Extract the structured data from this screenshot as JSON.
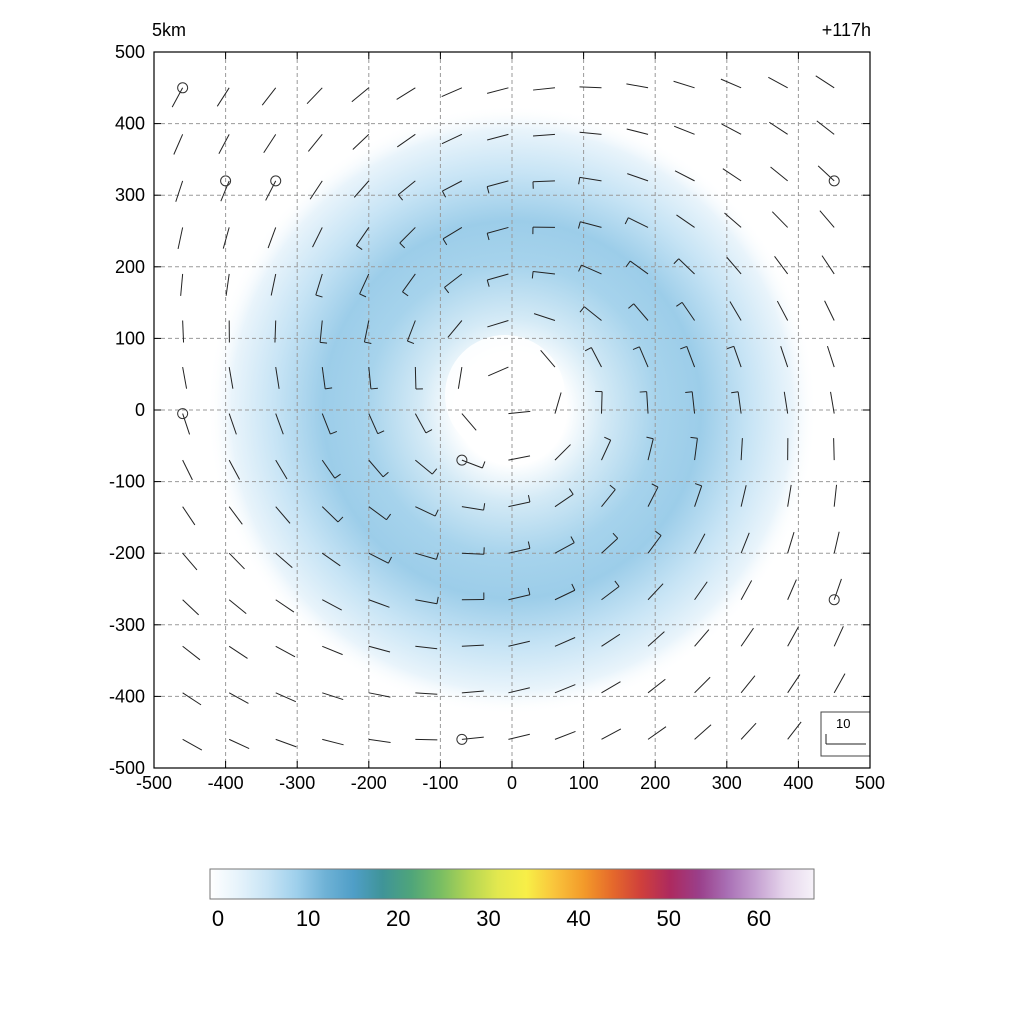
{
  "chart_data": {
    "type": "heatmap",
    "title_left": "5km",
    "title_right": "+117h",
    "xlim": [
      -500,
      500
    ],
    "ylim": [
      -500,
      500
    ],
    "x_ticks": [
      -500,
      -400,
      -300,
      -200,
      -100,
      0,
      100,
      200,
      300,
      400,
      500
    ],
    "y_ticks": [
      -500,
      -400,
      -300,
      -200,
      -100,
      0,
      100,
      200,
      300,
      400,
      500
    ],
    "x_tick_labels": [
      "-500",
      "-400",
      "-300",
      "-200",
      "-100",
      "0",
      "100",
      "200",
      "300",
      "400",
      "500"
    ],
    "y_tick_labels": [
      "-500",
      "-400",
      "-300",
      "-200",
      "-100",
      "0",
      "100",
      "200",
      "300",
      "400",
      "500"
    ],
    "grid": true,
    "field": {
      "description_values": "ring-shaped maximum of about 12 around radius 200, eye minimum near (0, 30)",
      "eye_center": [
        0,
        30
      ],
      "ring_radius": 200,
      "ring_peak": 12,
      "outer_radius": 380
    },
    "colorbar": {
      "range": [
        0,
        66
      ],
      "tick_values": [
        0,
        10,
        20,
        30,
        40,
        50,
        60
      ],
      "tick_labels": [
        "0",
        "10",
        "20",
        "30",
        "40",
        "50",
        "60"
      ],
      "stops": [
        "#ffffff",
        "#e6f3fb",
        "#c7e4f5",
        "#9fd0ec",
        "#6fb2d6",
        "#4f9ec7",
        "#3f9498",
        "#4fa57a",
        "#78bd63",
        "#b3d553",
        "#e2e84f",
        "#f8ef47",
        "#f9c33b",
        "#f39a2a",
        "#e5692b",
        "#cf3f3c",
        "#ad2a5f",
        "#9a3f8a",
        "#a970b5",
        "#c6a2d2",
        "#e6d6ec",
        "#f6f2f9"
      ]
    },
    "wind_reference": {
      "label": "10"
    },
    "calm_points": [
      [
        -460,
        450
      ],
      [
        -400,
        320
      ],
      [
        -330,
        320
      ],
      [
        450,
        320
      ],
      [
        -460,
        -5
      ],
      [
        -70,
        -70
      ],
      [
        450,
        -265
      ],
      [
        -70,
        -460
      ]
    ]
  }
}
